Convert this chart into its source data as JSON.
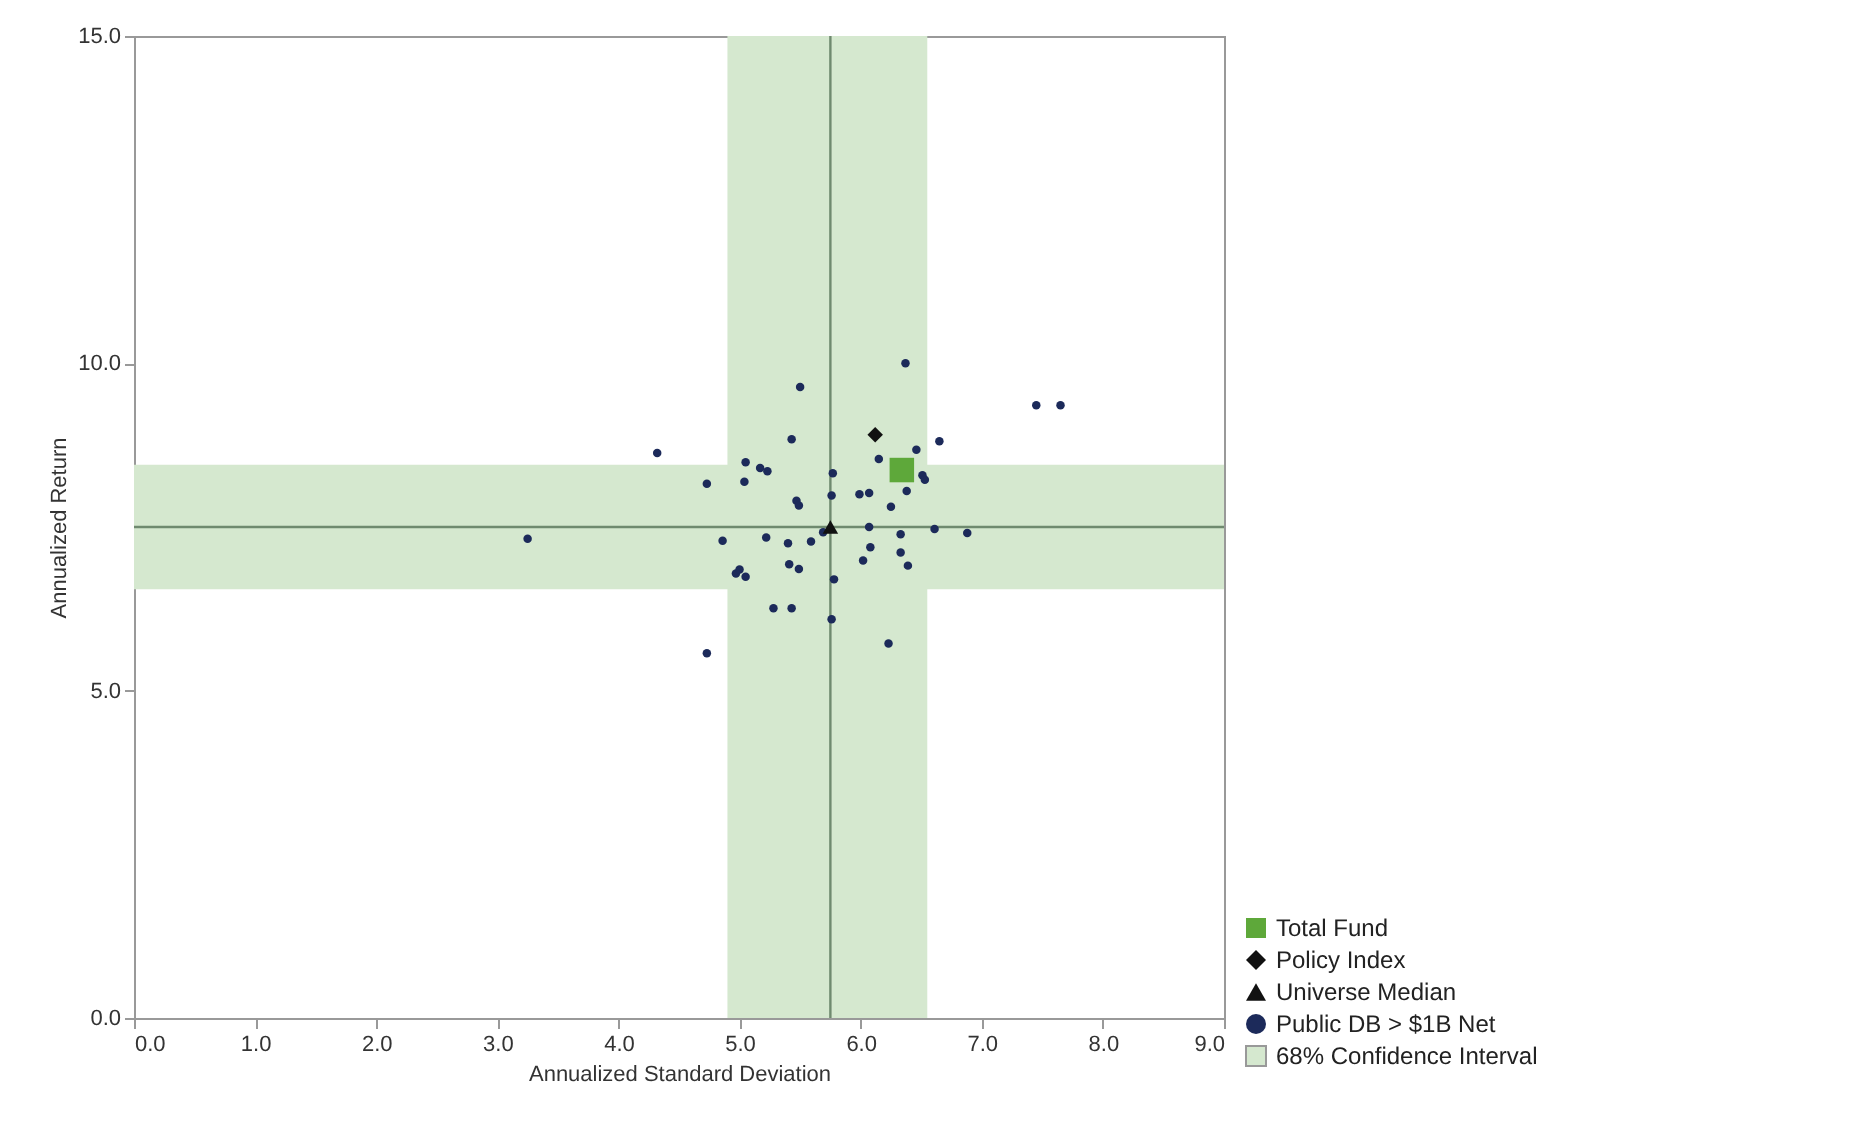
{
  "chart_data": {
    "type": "scatter",
    "xlabel": "Annualized Standard Deviation",
    "ylabel": "Annualized Return",
    "xlim": [
      0,
      9
    ],
    "ylim": [
      0,
      15
    ],
    "xticks": [
      {
        "value": 0,
        "label": "0.0"
      },
      {
        "value": 1,
        "label": "1.0"
      },
      {
        "value": 2,
        "label": "2.0"
      },
      {
        "value": 3,
        "label": "3.0"
      },
      {
        "value": 4,
        "label": "4.0"
      },
      {
        "value": 5,
        "label": "5.0"
      },
      {
        "value": 6,
        "label": "6.0"
      },
      {
        "value": 7,
        "label": "7.0"
      },
      {
        "value": 8,
        "label": "8.0"
      },
      {
        "value": 9,
        "label": "9.0"
      }
    ],
    "yticks": [
      {
        "value": 0,
        "label": "0.0"
      },
      {
        "value": 5,
        "label": "5.0"
      },
      {
        "value": 10,
        "label": "10.0"
      },
      {
        "value": 15,
        "label": "15.0"
      }
    ],
    "grid": false,
    "legend": "bottom right",
    "bands": [
      {
        "axis": "x",
        "from": 4.9,
        "to": 6.55,
        "color": "#d5e8cf",
        "label": "68% Confidence Interval"
      },
      {
        "axis": "y",
        "from": 6.55,
        "to": 8.45,
        "color": "#d5e8cf"
      }
    ],
    "ref_lines": [
      {
        "axis": "x",
        "value": 5.75,
        "color": "#6f8a6f"
      },
      {
        "axis": "y",
        "value": 7.5,
        "color": "#6f8a6f"
      }
    ],
    "series": [
      {
        "name": "Public DB > $1B Net",
        "color": "#1c2a5a",
        "marker": "circle",
        "x": [
          6.37,
          5.5,
          4.32,
          5.43,
          5.05,
          5.17,
          5.23,
          4.73,
          5.04,
          5.77,
          6.15,
          5.76,
          5.99,
          6.07,
          5.47,
          5.49,
          6.46,
          6.65,
          6.51,
          6.53,
          6.38,
          6.25,
          7.45,
          7.65,
          4.86,
          5.22,
          5.38,
          5.4,
          5.59,
          5.69,
          6.07,
          6.33,
          6.61,
          6.88,
          6.08,
          6.02,
          6.33,
          6.39,
          5.41,
          5.49,
          4.97,
          5.05,
          5.0,
          5.78,
          5.28,
          5.43,
          5.76,
          6.23,
          4.73,
          3.25
        ],
        "values": [
          10.0,
          9.64,
          8.63,
          8.84,
          8.49,
          8.4,
          8.35,
          8.16,
          8.19,
          8.32,
          8.54,
          7.98,
          8.0,
          8.02,
          7.9,
          7.83,
          8.68,
          8.81,
          8.29,
          8.22,
          8.05,
          7.81,
          9.36,
          9.36,
          7.29,
          7.34,
          null,
          7.25,
          7.28,
          7.42,
          7.5,
          7.39,
          7.47,
          7.41,
          7.19,
          6.99,
          7.11,
          6.91,
          6.93,
          6.86,
          6.79,
          6.74,
          6.85,
          6.7,
          6.26,
          6.26,
          6.09,
          5.72,
          5.57,
          7.32
        ]
      },
      {
        "name": "Universe Median",
        "color": "#111111",
        "marker": "triangle",
        "x": [
          5.75
        ],
        "values": [
          7.5
        ]
      },
      {
        "name": "Policy Index",
        "color": "#111111",
        "marker": "diamond",
        "x": [
          6.12
        ],
        "values": [
          8.91
        ]
      },
      {
        "name": "Total Fund",
        "color": "#5ea83a",
        "marker": "square",
        "x": [
          6.34
        ],
        "values": [
          8.37
        ]
      }
    ]
  }
}
